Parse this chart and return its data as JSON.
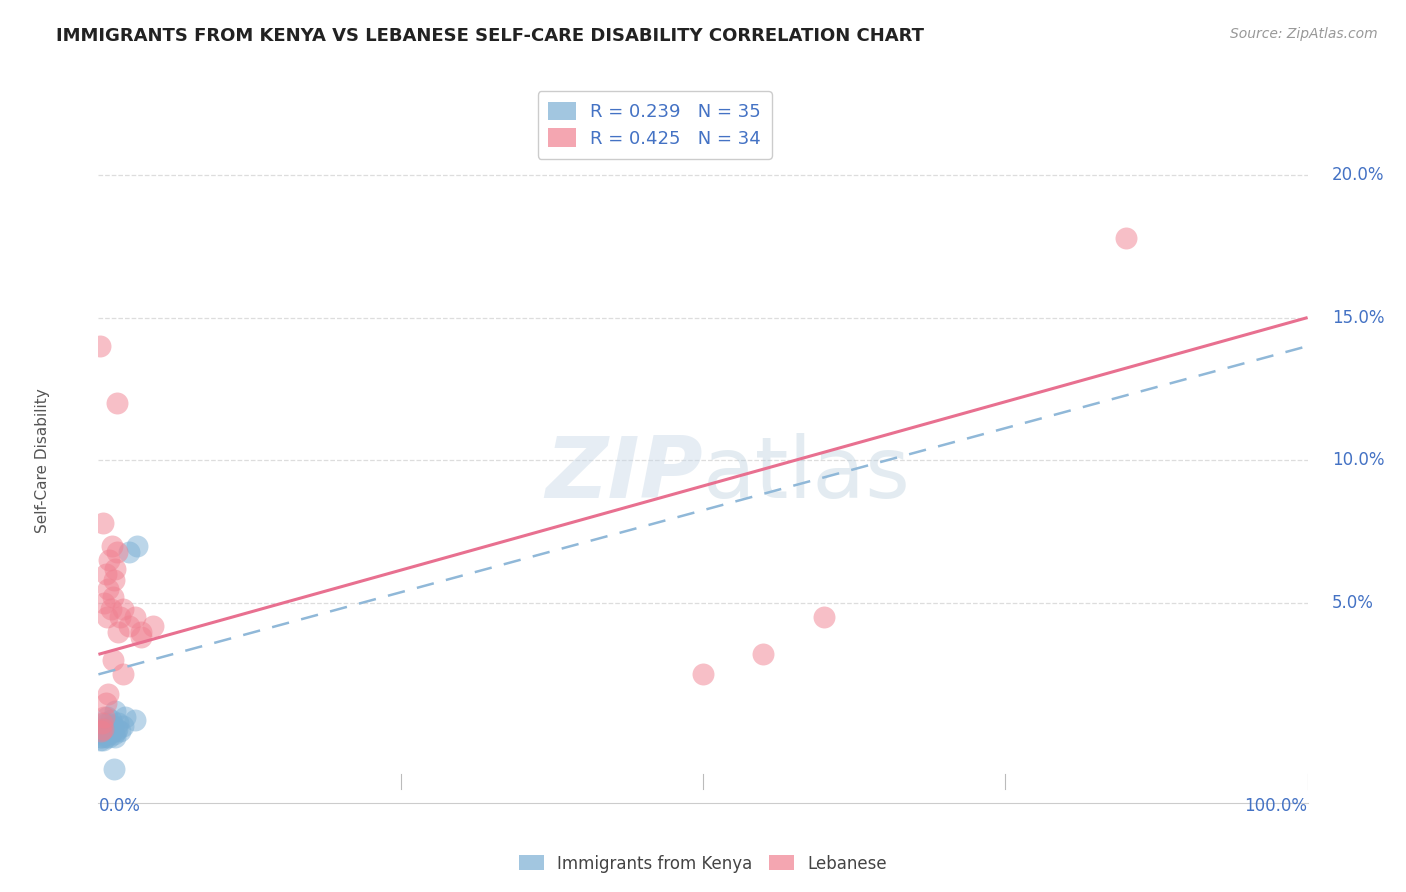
{
  "title": "IMMIGRANTS FROM KENYA VS LEBANESE SELF-CARE DISABILITY CORRELATION CHART",
  "source": "Source: ZipAtlas.com",
  "ylabel": "Self-Care Disability",
  "ytick_labels": [
    "5.0%",
    "10.0%",
    "15.0%",
    "20.0%"
  ],
  "ytick_values": [
    5,
    10,
    15,
    20
  ],
  "xlim": [
    0,
    100
  ],
  "ylim": [
    -2,
    23
  ],
  "legend_entry_blue": "R = 0.239   N = 35",
  "legend_entry_pink": "R = 0.425   N = 34",
  "legend_labels_bottom": [
    "Immigrants from Kenya",
    "Lebanese"
  ],
  "kenya_color": "#7bafd4",
  "lebanese_color": "#f08090",
  "kenya_alpha": 0.5,
  "lebanese_alpha": 0.5,
  "watermark": "ZIPatlas",
  "kenya_points": [
    [
      0.2,
      0.3
    ],
    [
      0.3,
      0.5
    ],
    [
      0.4,
      0.2
    ],
    [
      0.5,
      0.8
    ],
    [
      0.6,
      0.4
    ],
    [
      0.7,
      1.0
    ],
    [
      0.8,
      0.6
    ],
    [
      0.9,
      0.3
    ],
    [
      1.0,
      0.9
    ],
    [
      1.1,
      0.5
    ],
    [
      1.2,
      0.7
    ],
    [
      1.3,
      0.4
    ],
    [
      1.4,
      1.2
    ],
    [
      1.5,
      0.6
    ],
    [
      1.6,
      0.8
    ],
    [
      1.8,
      0.5
    ],
    [
      2.0,
      0.7
    ],
    [
      2.2,
      1.0
    ],
    [
      2.5,
      6.8
    ],
    [
      3.0,
      0.9
    ],
    [
      3.2,
      7.0
    ],
    [
      0.15,
      0.2
    ],
    [
      0.25,
      0.3
    ],
    [
      0.35,
      0.4
    ],
    [
      0.45,
      0.6
    ],
    [
      0.55,
      0.5
    ],
    [
      0.65,
      0.3
    ],
    [
      0.75,
      0.8
    ],
    [
      0.85,
      0.4
    ],
    [
      0.95,
      0.6
    ],
    [
      1.05,
      0.7
    ],
    [
      1.15,
      0.5
    ],
    [
      1.25,
      -0.8
    ],
    [
      1.35,
      0.3
    ],
    [
      1.45,
      0.5
    ]
  ],
  "lebanese_points": [
    [
      0.2,
      0.5
    ],
    [
      0.3,
      0.8
    ],
    [
      0.4,
      0.6
    ],
    [
      0.5,
      5.0
    ],
    [
      0.6,
      6.0
    ],
    [
      0.7,
      4.5
    ],
    [
      0.8,
      5.5
    ],
    [
      0.9,
      6.5
    ],
    [
      1.0,
      4.8
    ],
    [
      1.1,
      7.0
    ],
    [
      1.2,
      5.2
    ],
    [
      1.3,
      5.8
    ],
    [
      1.4,
      6.2
    ],
    [
      1.5,
      6.8
    ],
    [
      1.6,
      4.0
    ],
    [
      1.8,
      4.5
    ],
    [
      2.0,
      4.8
    ],
    [
      2.5,
      4.2
    ],
    [
      3.0,
      4.5
    ],
    [
      3.5,
      4.0
    ],
    [
      0.15,
      14.0
    ],
    [
      1.5,
      12.0
    ],
    [
      50.0,
      2.5
    ],
    [
      55.0,
      3.2
    ],
    [
      60.0,
      4.5
    ],
    [
      0.4,
      7.8
    ],
    [
      0.6,
      1.5
    ],
    [
      0.8,
      1.8
    ],
    [
      1.2,
      3.0
    ],
    [
      2.0,
      2.5
    ],
    [
      3.5,
      3.8
    ],
    [
      4.5,
      4.2
    ],
    [
      85.0,
      17.8
    ],
    [
      0.5,
      1.0
    ]
  ],
  "kenya_trend_x": [
    0,
    15
  ],
  "kenya_trend_y": [
    3.2,
    4.5
  ],
  "lebanese_trend_x": [
    0,
    100
  ],
  "lebanese_trend_y": [
    3.2,
    15.0
  ],
  "bg_color": "#ffffff",
  "grid_color": "#dddddd",
  "title_color": "#222222",
  "tick_color": "#4472c4"
}
